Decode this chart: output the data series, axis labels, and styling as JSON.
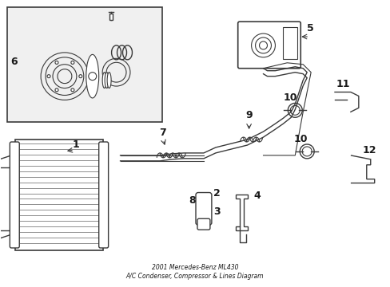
{
  "title": "2001 Mercedes-Benz ML430\nA/C Condenser, Compressor & Lines Diagram",
  "bg_color": "#ffffff",
  "fig_width": 4.89,
  "fig_height": 3.6,
  "dpi": 100,
  "line_color": "#3a3a3a",
  "fill_color": "#d8d8d8",
  "inset_bg": "#f0f0f0",
  "label_color": "#1a1a1a"
}
